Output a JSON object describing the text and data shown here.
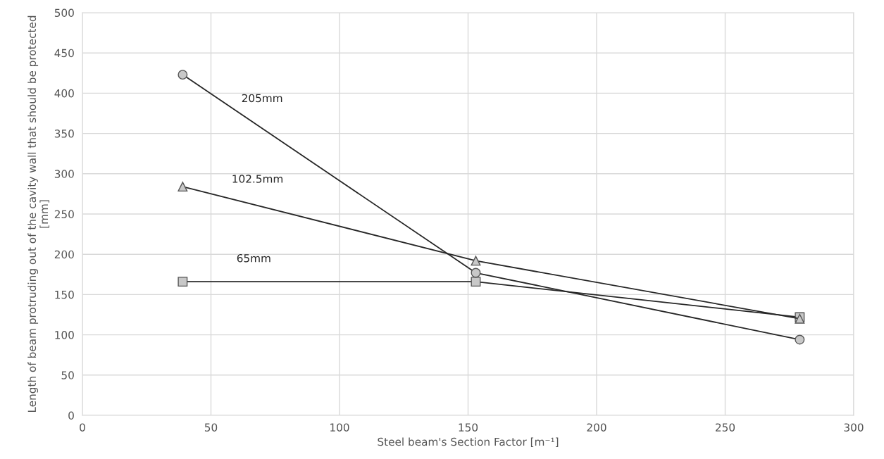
{
  "chart_data": {
    "type": "line",
    "xlabel": "Steel beam's Section Factor [m⁻¹]",
    "ylabel": "Length of beam protruding out of the cavity wall that should be protected [mm]",
    "xlim": [
      0,
      300
    ],
    "xticks": [
      0,
      50,
      100,
      150,
      200,
      250,
      300
    ],
    "ylim": [
      0,
      500
    ],
    "yticks": [
      0,
      50,
      100,
      150,
      200,
      250,
      300,
      350,
      400,
      450,
      500
    ],
    "grid": true,
    "line_style": "solid",
    "series": [
      {
        "name": "205mm",
        "color": "#262626",
        "marker": "circle",
        "x": [
          39,
          153,
          279
        ],
        "values": [
          423,
          177,
          94
        ]
      },
      {
        "name": "102.5mm",
        "color": "#262626",
        "marker": "triangle",
        "x": [
          39,
          153,
          279
        ],
        "values": [
          284,
          192,
          120
        ]
      },
      {
        "name": "65mm",
        "color": "#262626",
        "marker": "square",
        "x": [
          39,
          153,
          279
        ],
        "values": [
          166,
          166,
          122
        ]
      }
    ]
  }
}
